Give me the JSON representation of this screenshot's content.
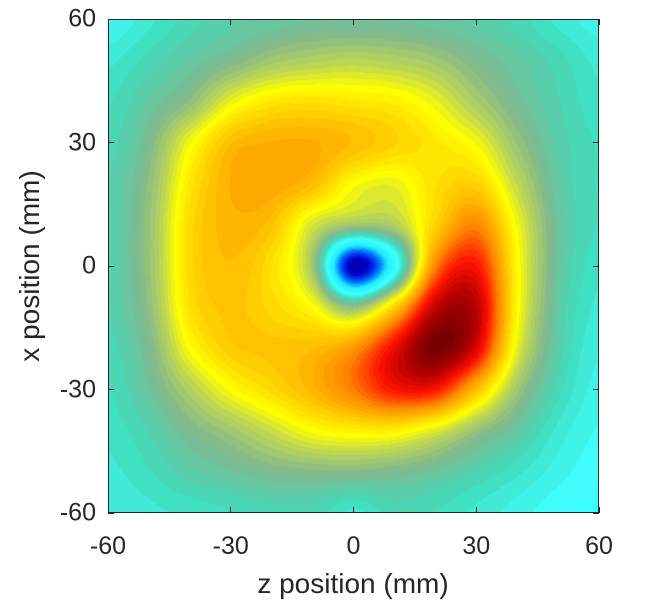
{
  "chart_data": {
    "type": "heatmap",
    "title": "",
    "xlabel": "z position (mm)",
    "ylabel": "x position (mm)",
    "xlim": [
      -60,
      60
    ],
    "ylim": [
      -60,
      60
    ],
    "xticks": [
      -60,
      -30,
      0,
      30,
      60
    ],
    "yticks": [
      -60,
      -30,
      0,
      30,
      60
    ],
    "xtick_labels": [
      "-60",
      "-30",
      "0",
      "30",
      "60"
    ],
    "ytick_labels": [
      "-60",
      "-30",
      "0",
      "30",
      "60"
    ],
    "grid": false,
    "colormap": "jet",
    "value_range": [
      0,
      1
    ],
    "z_grid": [
      -60,
      -50,
      -40,
      -30,
      -20,
      -10,
      0,
      10,
      20,
      30,
      40,
      50,
      60
    ],
    "x_grid": [
      60,
      50,
      40,
      30,
      20,
      10,
      0,
      -10,
      -20,
      -30,
      -40,
      -50,
      -60
    ],
    "values_normalized": [
      [
        0.34,
        0.37,
        0.4,
        0.42,
        0.43,
        0.44,
        0.44,
        0.44,
        0.43,
        0.42,
        0.4,
        0.37,
        0.35
      ],
      [
        0.37,
        0.4,
        0.43,
        0.46,
        0.5,
        0.52,
        0.53,
        0.52,
        0.5,
        0.46,
        0.43,
        0.4,
        0.37
      ],
      [
        0.39,
        0.43,
        0.48,
        0.58,
        0.63,
        0.64,
        0.63,
        0.62,
        0.58,
        0.51,
        0.45,
        0.41,
        0.38
      ],
      [
        0.4,
        0.46,
        0.59,
        0.69,
        0.71,
        0.71,
        0.69,
        0.66,
        0.63,
        0.59,
        0.49,
        0.42,
        0.39
      ],
      [
        0.41,
        0.48,
        0.63,
        0.71,
        0.72,
        0.69,
        0.6,
        0.58,
        0.64,
        0.66,
        0.54,
        0.43,
        0.39
      ],
      [
        0.41,
        0.49,
        0.65,
        0.7,
        0.68,
        0.56,
        0.5,
        0.52,
        0.66,
        0.76,
        0.59,
        0.44,
        0.39
      ],
      [
        0.41,
        0.49,
        0.65,
        0.69,
        0.64,
        0.5,
        0.05,
        0.3,
        0.76,
        0.86,
        0.61,
        0.44,
        0.38
      ],
      [
        0.41,
        0.48,
        0.64,
        0.68,
        0.65,
        0.6,
        0.48,
        0.66,
        0.92,
        0.93,
        0.61,
        0.43,
        0.37
      ],
      [
        0.4,
        0.46,
        0.6,
        0.67,
        0.68,
        0.69,
        0.74,
        0.88,
        1.0,
        0.9,
        0.58,
        0.42,
        0.36
      ],
      [
        0.39,
        0.44,
        0.52,
        0.6,
        0.65,
        0.7,
        0.77,
        0.86,
        0.86,
        0.69,
        0.5,
        0.4,
        0.35
      ],
      [
        0.38,
        0.41,
        0.46,
        0.5,
        0.55,
        0.6,
        0.62,
        0.62,
        0.57,
        0.49,
        0.43,
        0.37,
        0.34
      ],
      [
        0.37,
        0.39,
        0.42,
        0.44,
        0.46,
        0.47,
        0.47,
        0.46,
        0.44,
        0.41,
        0.38,
        0.35,
        0.33
      ],
      [
        0.36,
        0.37,
        0.38,
        0.39,
        0.4,
        0.4,
        0.37,
        0.4,
        0.39,
        0.37,
        0.35,
        0.33,
        0.32
      ]
    ],
    "colormap_stops": [
      [
        0.0,
        "#00007a"
      ],
      [
        0.08,
        "#0000d0"
      ],
      [
        0.16,
        "#0070ff"
      ],
      [
        0.24,
        "#20f0ff"
      ],
      [
        0.33,
        "#40ffff"
      ],
      [
        0.39,
        "#40dcbc"
      ],
      [
        0.46,
        "#80b890"
      ],
      [
        0.54,
        "#c0d850"
      ],
      [
        0.6,
        "#ffff00"
      ],
      [
        0.68,
        "#ffc400"
      ],
      [
        0.76,
        "#ff8a00"
      ],
      [
        0.86,
        "#ff1000"
      ],
      [
        0.94,
        "#b00000"
      ],
      [
        1.0,
        "#780000"
      ]
    ]
  }
}
